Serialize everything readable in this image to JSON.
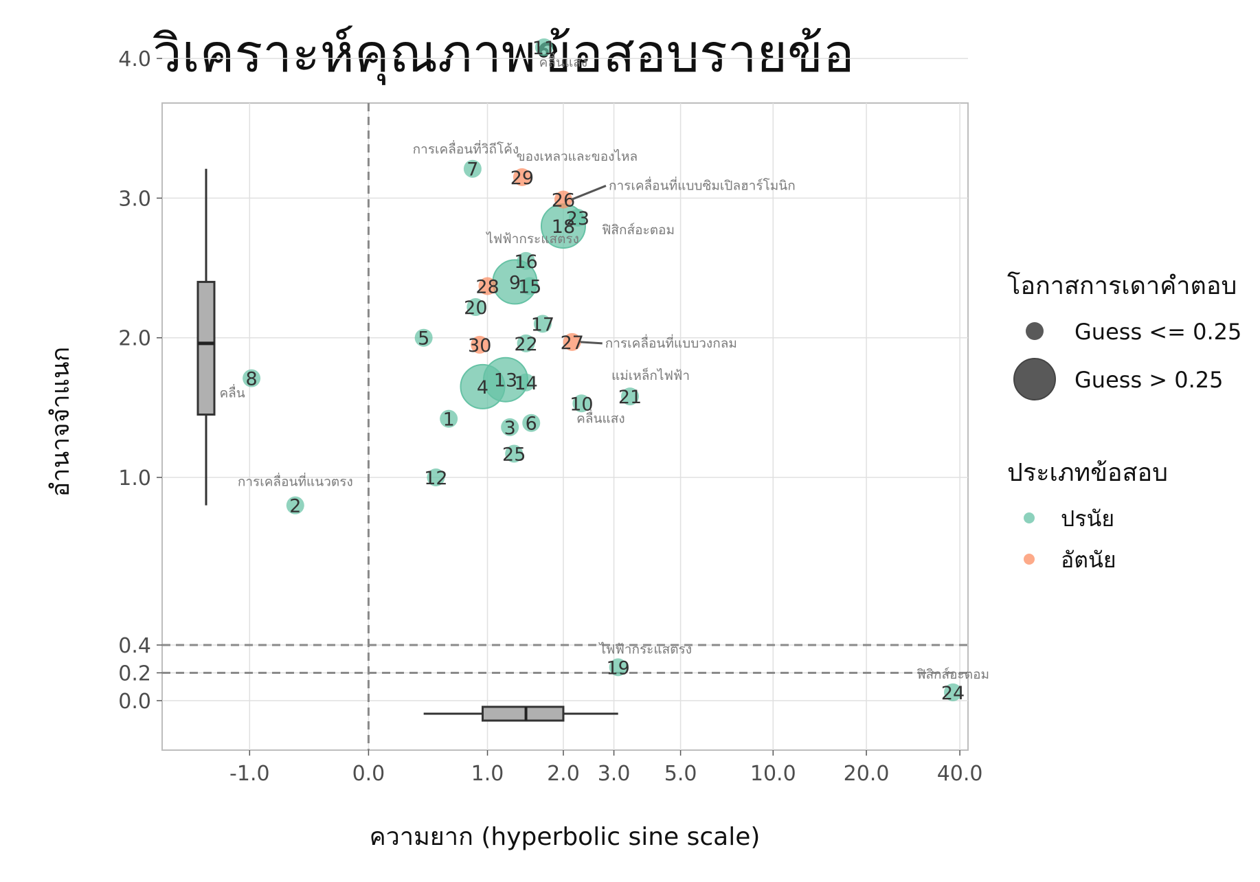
{
  "chart_data": {
    "type": "scatter",
    "title": "วิเคราะห์คุณภาพข้อสอบรายข้อ",
    "xlabel": "ความยาก (hyperbolic sine scale)",
    "ylabel": "อำนาจจำแนก",
    "x_scale": "asinh",
    "x_ticks": [
      -1,
      0,
      1,
      2,
      3,
      5,
      10,
      20,
      40
    ],
    "x_tick_labels": [
      "-1.0",
      "0.0",
      "1.0",
      "2.0",
      "3.0",
      "5.0",
      "10.0",
      "20.0",
      "40.0"
    ],
    "y_ticks": [
      0,
      0.2,
      0.4,
      1,
      2,
      3,
      4
    ],
    "y_tick_labels": [
      "0.0",
      "0.2",
      "0.4",
      "1.0",
      "2.0",
      "3.0",
      "4.0"
    ],
    "reference_lines": {
      "vertical_x": 0,
      "horizontal_y": [
        0.2,
        0.4
      ]
    },
    "grid": true,
    "legend_position": "right",
    "colors": {
      "objective": "#66c2a5",
      "subjective": "#fc8d62"
    },
    "legend": {
      "size_title": "โอกาสการเดาคำตอบ",
      "size_items": [
        "Guess <= 0.25",
        "Guess > 0.25"
      ],
      "type_title": "ประเภทข้อสอบ",
      "type_items": [
        "ปรนัย",
        "อัตนัย"
      ]
    },
    "points": [
      {
        "id": "1",
        "x": 0.63,
        "y": 1.42,
        "type": "objective",
        "guess": "low"
      },
      {
        "id": "2",
        "x": -0.57,
        "y": 0.8,
        "type": "objective",
        "guess": "low",
        "topic": "การเคลื่อนที่แนวตรง"
      },
      {
        "id": "3",
        "x": 1.25,
        "y": 1.36,
        "type": "objective",
        "guess": "low"
      },
      {
        "id": "4",
        "x": 0.95,
        "y": 1.65,
        "type": "objective",
        "guess": "high"
      },
      {
        "id": "5",
        "x": 0.42,
        "y": 2.0,
        "type": "objective",
        "guess": "low"
      },
      {
        "id": "6",
        "x": 1.52,
        "y": 1.39,
        "type": "objective",
        "guess": "low"
      },
      {
        "id": "7",
        "x": 0.85,
        "y": 3.21,
        "type": "objective",
        "guess": "low",
        "topic": "การเคลื่อนที่วิถีโค้ง"
      },
      {
        "id": "8",
        "x": -0.98,
        "y": 1.71,
        "type": "objective",
        "guess": "low",
        "topic": "คลื่น"
      },
      {
        "id": "9",
        "x": 1.31,
        "y": 2.4,
        "type": "objective",
        "guess": "high"
      },
      {
        "id": "10",
        "x": 2.32,
        "y": 1.53,
        "type": "objective",
        "guess": "low",
        "topic": "คลื่นแสง"
      },
      {
        "id": "11",
        "x": 1.7,
        "y": 4.08,
        "type": "objective",
        "guess": "low",
        "topic": "คลื่นแสง"
      },
      {
        "id": "12",
        "x": 0.52,
        "y": 1.0,
        "type": "objective",
        "guess": "low"
      },
      {
        "id": "13",
        "x": 1.2,
        "y": 1.7,
        "type": "objective",
        "guess": "high"
      },
      {
        "id": "14",
        "x": 1.45,
        "y": 1.68,
        "type": "objective",
        "guess": "low"
      },
      {
        "id": "15",
        "x": 1.5,
        "y": 2.37,
        "type": "objective",
        "guess": "low"
      },
      {
        "id": "16",
        "x": 1.45,
        "y": 2.55,
        "type": "objective",
        "guess": "low",
        "topic": "ไฟฟ้ากระแสตรง"
      },
      {
        "id": "17",
        "x": 1.68,
        "y": 2.1,
        "type": "objective",
        "guess": "low"
      },
      {
        "id": "18",
        "x": 2.0,
        "y": 2.8,
        "type": "objective",
        "guess": "high",
        "topic": "ฟิสิกส์อะตอม"
      },
      {
        "id": "19",
        "x": 3.1,
        "y": 0.24,
        "type": "objective",
        "guess": "low",
        "topic": "ไฟฟ้ากระแสตรง"
      },
      {
        "id": "20",
        "x": 0.88,
        "y": 2.22,
        "type": "objective",
        "guess": "low"
      },
      {
        "id": "21",
        "x": 3.4,
        "y": 1.58,
        "type": "objective",
        "guess": "low",
        "topic": "แม่เหล็กไฟฟ้า"
      },
      {
        "id": "22",
        "x": 1.45,
        "y": 1.96,
        "type": "objective",
        "guess": "low"
      },
      {
        "id": "23",
        "x": 2.25,
        "y": 2.86,
        "type": "objective",
        "guess": "low"
      },
      {
        "id": "24",
        "x": 38.0,
        "y": 0.06,
        "type": "objective",
        "guess": "low",
        "topic": "ฟิสิกส์อะตอม"
      },
      {
        "id": "25",
        "x": 1.3,
        "y": 1.17,
        "type": "objective",
        "guess": "low"
      },
      {
        "id": "26",
        "x": 2.0,
        "y": 2.99,
        "type": "subjective",
        "guess": "low",
        "topic": "การเคลื่อนที่แบบซิมเปิลฮาร์โมนิก"
      },
      {
        "id": "27",
        "x": 2.15,
        "y": 1.97,
        "type": "subjective",
        "guess": "low",
        "topic": "การเคลื่อนที่แบบวงกลม"
      },
      {
        "id": "28",
        "x": 1.0,
        "y": 2.37,
        "type": "subjective",
        "guess": "low"
      },
      {
        "id": "29",
        "x": 1.4,
        "y": 3.15,
        "type": "subjective",
        "guess": "low",
        "topic": "ของเหลวและของไหล"
      },
      {
        "id": "30",
        "x": 0.92,
        "y": 1.95,
        "type": "subjective",
        "guess": "low"
      }
    ],
    "boxplots": {
      "discrimination": {
        "min": 0.8,
        "q1": 1.45,
        "median": 1.96,
        "q3": 2.4,
        "max": 3.21
      },
      "difficulty": {
        "min": 0.42,
        "q1": 0.95,
        "median": 1.45,
        "q3": 2.0,
        "max": 3.1
      }
    }
  }
}
